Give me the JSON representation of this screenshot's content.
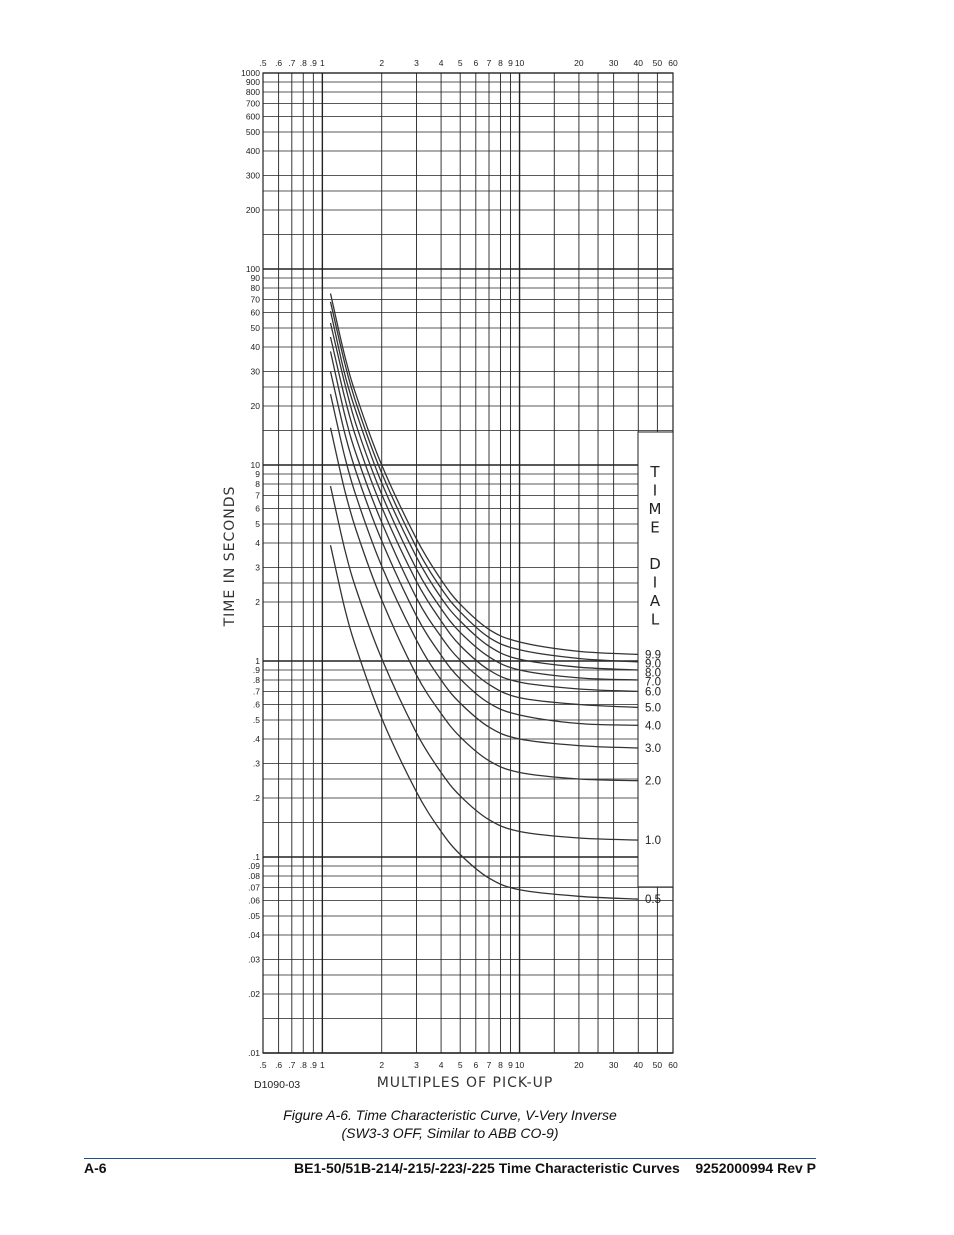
{
  "chart_data": {
    "type": "line",
    "title": "",
    "xlabel": "MULTIPLES OF PICK-UP",
    "ylabel": "TIME IN SECONDS",
    "x_scale": "log",
    "y_scale": "log",
    "xlim": [
      0.5,
      60
    ],
    "ylim": [
      0.01,
      1000
    ],
    "grid": true,
    "legend": "right, labels at curve ends",
    "legend_title": "TIME DIAL",
    "x_tick_labels": [
      {
        "v": 0.5,
        "t": ".5"
      },
      {
        "v": 0.6,
        "t": ".6"
      },
      {
        "v": 0.7,
        "t": ".7"
      },
      {
        "v": 0.8,
        "t": ".8"
      },
      {
        "v": 0.9,
        "t": ".9"
      },
      {
        "v": 1,
        "t": "1"
      },
      {
        "v": 2,
        "t": "2"
      },
      {
        "v": 3,
        "t": "3"
      },
      {
        "v": 4,
        "t": "4"
      },
      {
        "v": 5,
        "t": "5"
      },
      {
        "v": 6,
        "t": "6"
      },
      {
        "v": 7,
        "t": "7"
      },
      {
        "v": 8,
        "t": "8"
      },
      {
        "v": 9,
        "t": "9"
      },
      {
        "v": 10,
        "t": "10"
      },
      {
        "v": 20,
        "t": "20"
      },
      {
        "v": 30,
        "t": "30"
      },
      {
        "v": 40,
        "t": "40"
      },
      {
        "v": 50,
        "t": "50"
      },
      {
        "v": 60,
        "t": "60"
      }
    ],
    "y_tick_labels": [
      {
        "v": 1000,
        "t": "1000"
      },
      {
        "v": 900,
        "t": "900"
      },
      {
        "v": 800,
        "t": "800"
      },
      {
        "v": 700,
        "t": "700"
      },
      {
        "v": 600,
        "t": "600"
      },
      {
        "v": 500,
        "t": "500"
      },
      {
        "v": 400,
        "t": "400"
      },
      {
        "v": 300,
        "t": "300"
      },
      {
        "v": 200,
        "t": "200"
      },
      {
        "v": 100,
        "t": "100"
      },
      {
        "v": 90,
        "t": "90"
      },
      {
        "v": 80,
        "t": "80"
      },
      {
        "v": 70,
        "t": "70"
      },
      {
        "v": 60,
        "t": "60"
      },
      {
        "v": 50,
        "t": "50"
      },
      {
        "v": 40,
        "t": "40"
      },
      {
        "v": 30,
        "t": "30"
      },
      {
        "v": 20,
        "t": "20"
      },
      {
        "v": 10,
        "t": "10"
      },
      {
        "v": 9,
        "t": "9"
      },
      {
        "v": 8,
        "t": "8"
      },
      {
        "v": 7,
        "t": "7"
      },
      {
        "v": 6,
        "t": "6"
      },
      {
        "v": 5,
        "t": "5"
      },
      {
        "v": 4,
        "t": "4"
      },
      {
        "v": 3,
        "t": "3"
      },
      {
        "v": 2,
        "t": "2"
      },
      {
        "v": 1,
        "t": "1"
      },
      {
        "v": 0.9,
        "t": ".9"
      },
      {
        "v": 0.8,
        "t": ".8"
      },
      {
        "v": 0.7,
        "t": ".7"
      },
      {
        "v": 0.6,
        "t": ".6"
      },
      {
        "v": 0.5,
        "t": ".5"
      },
      {
        "v": 0.4,
        "t": ".4"
      },
      {
        "v": 0.3,
        "t": ".3"
      },
      {
        "v": 0.2,
        "t": ".2"
      },
      {
        "v": 0.1,
        "t": ".1"
      },
      {
        "v": 0.09,
        "t": ".09"
      },
      {
        "v": 0.08,
        "t": ".08"
      },
      {
        "v": 0.07,
        "t": ".07"
      },
      {
        "v": 0.06,
        "t": ".06"
      },
      {
        "v": 0.05,
        "t": ".05"
      },
      {
        "v": 0.04,
        "t": ".04"
      },
      {
        "v": 0.03,
        "t": ".03"
      },
      {
        "v": 0.02,
        "t": ".02"
      },
      {
        "v": 0.01,
        "t": ".01"
      }
    ],
    "series": [
      {
        "name": "9.9",
        "x": [
          1.1,
          1.3,
          1.5,
          2,
          3,
          4,
          5,
          7,
          10,
          20,
          40
        ],
        "y": [
          75,
          36,
          22,
          10,
          4.2,
          2.6,
          1.95,
          1.45,
          1.25,
          1.12,
          1.08
        ]
      },
      {
        "name": "9.0",
        "x": [
          1.1,
          1.3,
          1.5,
          2,
          3,
          4,
          5,
          7,
          10,
          20,
          40
        ],
        "y": [
          68,
          33,
          20,
          9.1,
          3.8,
          2.35,
          1.78,
          1.32,
          1.14,
          1.03,
          0.99
        ]
      },
      {
        "name": "8.0",
        "x": [
          1.1,
          1.3,
          1.5,
          2,
          3,
          4,
          5,
          7,
          10,
          20,
          40
        ],
        "y": [
          61,
          29,
          18,
          8.1,
          3.4,
          2.1,
          1.6,
          1.19,
          1.02,
          0.93,
          0.9
        ]
      },
      {
        "name": "7.0",
        "x": [
          1.1,
          1.3,
          1.5,
          2,
          3,
          4,
          5,
          7,
          10,
          20,
          40
        ],
        "y": [
          53,
          26,
          15.5,
          7.1,
          2.95,
          1.85,
          1.4,
          1.05,
          0.9,
          0.82,
          0.8
        ]
      },
      {
        "name": "6.0",
        "x": [
          1.1,
          1.3,
          1.5,
          2,
          3,
          4,
          5,
          7,
          10,
          20,
          40
        ],
        "y": [
          45,
          22,
          13.3,
          6.1,
          2.55,
          1.6,
          1.2,
          0.9,
          0.78,
          0.72,
          0.7
        ]
      },
      {
        "name": "5.0",
        "x": [
          1.1,
          1.3,
          1.5,
          2,
          3,
          4,
          5,
          7,
          10,
          20,
          40
        ],
        "y": [
          38,
          18,
          11,
          5.1,
          2.1,
          1.33,
          1.01,
          0.76,
          0.65,
          0.6,
          0.58
        ]
      },
      {
        "name": "4.0",
        "x": [
          1.1,
          1.3,
          1.5,
          2,
          3,
          4,
          5,
          7,
          10,
          20,
          40
        ],
        "y": [
          30,
          14.5,
          8.9,
          4.1,
          1.7,
          1.07,
          0.81,
          0.61,
          0.53,
          0.48,
          0.47
        ]
      },
      {
        "name": "3.0",
        "x": [
          1.1,
          1.3,
          1.5,
          2,
          3,
          4,
          5,
          7,
          10,
          20,
          40
        ],
        "y": [
          23,
          11,
          6.7,
          3.05,
          1.28,
          0.8,
          0.61,
          0.46,
          0.4,
          0.37,
          0.36
        ]
      },
      {
        "name": "2.0",
        "x": [
          1.1,
          1.3,
          1.5,
          2,
          3,
          4,
          5,
          7,
          10,
          20,
          40
        ],
        "y": [
          15.5,
          7.4,
          4.5,
          2.05,
          0.85,
          0.54,
          0.41,
          0.31,
          0.27,
          0.25,
          0.245
        ]
      },
      {
        "name": "1.0",
        "x": [
          1.1,
          1.3,
          1.5,
          2,
          3,
          4,
          5,
          7,
          10,
          20,
          40
        ],
        "y": [
          7.8,
          3.7,
          2.25,
          1.03,
          0.43,
          0.27,
          0.205,
          0.155,
          0.135,
          0.125,
          0.122
        ]
      },
      {
        "name": "0.5",
        "x": [
          1.1,
          1.3,
          1.5,
          2,
          3,
          4,
          5,
          7,
          10,
          20,
          40
        ],
        "y": [
          3.9,
          1.85,
          1.13,
          0.51,
          0.215,
          0.135,
          0.103,
          0.078,
          0.068,
          0.063,
          0.061
        ]
      }
    ],
    "drawing_code": "D1090-03"
  },
  "caption": {
    "line1": "Figure A-6. Time Characteristic Curve, V-Very Inverse",
    "line2": "(SW3-3 OFF, Similar to ABB CO-9)"
  },
  "footer": {
    "page": "A-6",
    "doc": "BE1-50/51B-214/-215/-223/-225 Time Characteristic Curves    9252000994 Rev P"
  }
}
